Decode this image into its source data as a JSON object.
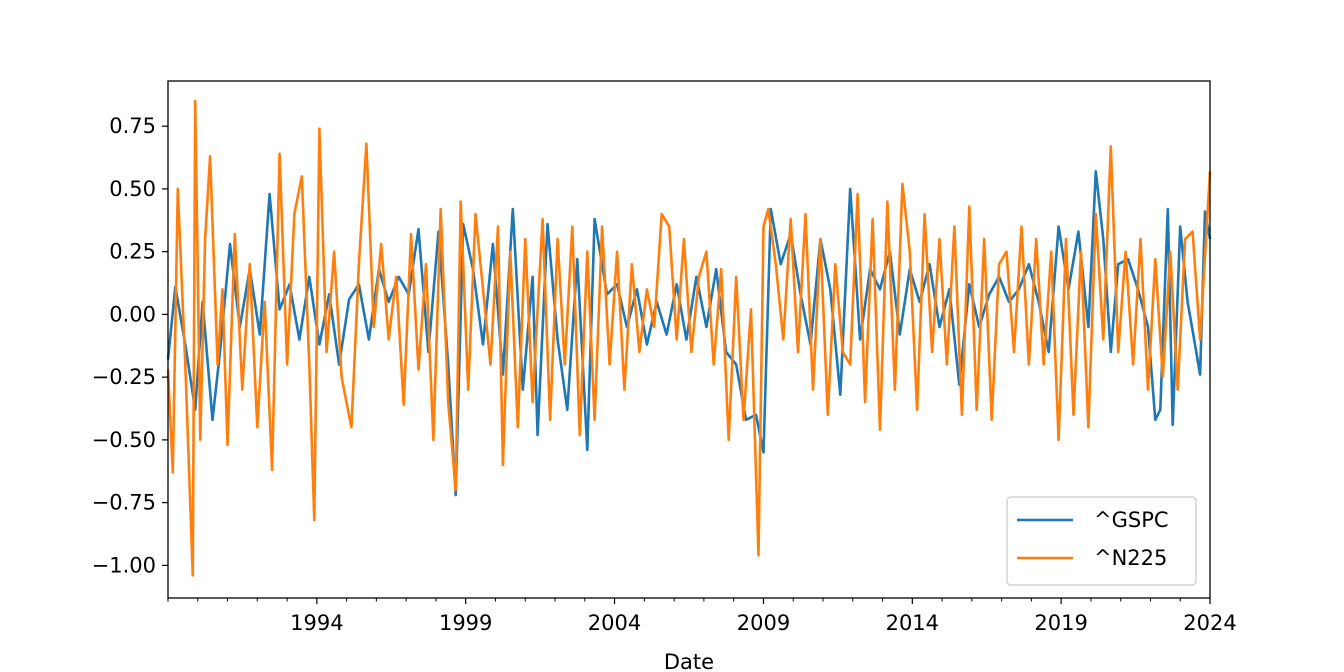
{
  "chart_data": {
    "type": "line",
    "title": "",
    "xlabel": "Date",
    "ylabel": "",
    "xlim": [
      "1989-01-01",
      "2024-01-01"
    ],
    "ylim": [
      -1.13,
      0.93
    ],
    "x_ticks": [
      {
        "label": "1994",
        "date": "1994-01-01"
      },
      {
        "label": "1999",
        "date": "1999-01-01"
      },
      {
        "label": "2004",
        "date": "2004-01-01"
      },
      {
        "label": "2009",
        "date": "2009-01-01"
      },
      {
        "label": "2014",
        "date": "2014-01-01"
      },
      {
        "label": "2019",
        "date": "2019-01-01"
      },
      {
        "label": "2024",
        "date": "2024-01-01"
      }
    ],
    "y_ticks": [
      {
        "label": "0.75",
        "value": 0.75
      },
      {
        "label": "0.50",
        "value": 0.5
      },
      {
        "label": "0.25",
        "value": 0.25
      },
      {
        "label": "0.00",
        "value": 0.0
      },
      {
        "label": "−0.25",
        "value": -0.25
      },
      {
        "label": "−0.50",
        "value": -0.5
      },
      {
        "label": "−0.75",
        "value": -0.75
      },
      {
        "label": "−1.00",
        "value": -1.0
      }
    ],
    "grid": false,
    "legend_position": "lower-right",
    "series": [
      {
        "name": "^GSPC",
        "color": "#1f77b4",
        "points": [
          [
            "1989-01-01",
            -0.18
          ],
          [
            "1989-04-01",
            0.11
          ],
          [
            "1989-08-01",
            -0.12
          ],
          [
            "1989-12-01",
            -0.38
          ],
          [
            "1990-03-01",
            0.05
          ],
          [
            "1990-07-01",
            -0.42
          ],
          [
            "1990-10-01",
            -0.15
          ],
          [
            "1991-02-01",
            0.28
          ],
          [
            "1991-06-01",
            -0.05
          ],
          [
            "1991-10-01",
            0.18
          ],
          [
            "1992-02-01",
            -0.08
          ],
          [
            "1992-06-01",
            0.48
          ],
          [
            "1992-10-01",
            0.02
          ],
          [
            "1993-02-01",
            0.12
          ],
          [
            "1993-06-01",
            -0.1
          ],
          [
            "1993-10-01",
            0.15
          ],
          [
            "1994-02-01",
            -0.12
          ],
          [
            "1994-06-01",
            0.08
          ],
          [
            "1994-10-01",
            -0.2
          ],
          [
            "1995-02-01",
            0.06
          ],
          [
            "1995-06-01",
            0.12
          ],
          [
            "1995-10-01",
            -0.1
          ],
          [
            "1996-02-01",
            0.18
          ],
          [
            "1996-06-01",
            0.05
          ],
          [
            "1996-10-01",
            0.15
          ],
          [
            "1997-02-01",
            0.08
          ],
          [
            "1997-06-01",
            0.34
          ],
          [
            "1997-10-01",
            -0.15
          ],
          [
            "1998-02-01",
            0.33
          ],
          [
            "1998-06-01",
            -0.2
          ],
          [
            "1998-09-01",
            -0.72
          ],
          [
            "1998-12-01",
            0.36
          ],
          [
            "1999-04-01",
            0.18
          ],
          [
            "1999-08-01",
            -0.12
          ],
          [
            "1999-12-01",
            0.28
          ],
          [
            "2000-04-01",
            -0.24
          ],
          [
            "2000-08-01",
            0.42
          ],
          [
            "2000-12-01",
            -0.3
          ],
          [
            "2001-04-01",
            0.15
          ],
          [
            "2001-06-01",
            -0.48
          ],
          [
            "2001-10-01",
            0.36
          ],
          [
            "2002-02-01",
            -0.1
          ],
          [
            "2002-06-01",
            -0.38
          ],
          [
            "2002-10-01",
            0.22
          ],
          [
            "2003-02-01",
            -0.54
          ],
          [
            "2003-05-01",
            0.38
          ],
          [
            "2003-10-01",
            0.08
          ],
          [
            "2004-02-01",
            0.12
          ],
          [
            "2004-06-01",
            -0.05
          ],
          [
            "2004-10-01",
            0.1
          ],
          [
            "2005-02-01",
            -0.12
          ],
          [
            "2005-06-01",
            0.05
          ],
          [
            "2005-10-01",
            -0.08
          ],
          [
            "2006-02-01",
            0.12
          ],
          [
            "2006-06-01",
            -0.1
          ],
          [
            "2006-10-01",
            0.15
          ],
          [
            "2007-02-01",
            -0.05
          ],
          [
            "2007-06-01",
            0.18
          ],
          [
            "2007-10-01",
            -0.15
          ],
          [
            "2008-02-01",
            -0.2
          ],
          [
            "2008-06-01",
            -0.42
          ],
          [
            "2008-10-01",
            -0.4
          ],
          [
            "2009-01-01",
            -0.55
          ],
          [
            "2009-04-01",
            0.42
          ],
          [
            "2009-08-01",
            0.2
          ],
          [
            "2009-12-01",
            0.32
          ],
          [
            "2010-04-01",
            0.08
          ],
          [
            "2010-08-01",
            -0.12
          ],
          [
            "2010-12-01",
            0.3
          ],
          [
            "2011-04-01",
            0.1
          ],
          [
            "2011-08-01",
            -0.32
          ],
          [
            "2011-12-01",
            0.5
          ],
          [
            "2012-04-01",
            -0.1
          ],
          [
            "2012-08-01",
            0.18
          ],
          [
            "2012-12-01",
            0.1
          ],
          [
            "2013-04-01",
            0.25
          ],
          [
            "2013-08-01",
            -0.08
          ],
          [
            "2013-12-01",
            0.18
          ],
          [
            "2014-04-01",
            0.05
          ],
          [
            "2014-08-01",
            0.2
          ],
          [
            "2014-12-01",
            -0.05
          ],
          [
            "2015-04-01",
            0.1
          ],
          [
            "2015-08-01",
            -0.28
          ],
          [
            "2015-12-01",
            0.12
          ],
          [
            "2016-04-01",
            -0.05
          ],
          [
            "2016-08-01",
            0.08
          ],
          [
            "2016-12-01",
            0.15
          ],
          [
            "2017-04-01",
            0.05
          ],
          [
            "2017-08-01",
            0.1
          ],
          [
            "2017-12-01",
            0.2
          ],
          [
            "2018-04-01",
            0.05
          ],
          [
            "2018-08-01",
            -0.15
          ],
          [
            "2018-12-01",
            0.35
          ],
          [
            "2019-04-01",
            0.1
          ],
          [
            "2019-08-01",
            0.33
          ],
          [
            "2019-12-01",
            -0.05
          ],
          [
            "2020-03-01",
            0.57
          ],
          [
            "2020-06-01",
            0.3
          ],
          [
            "2020-09-01",
            -0.15
          ],
          [
            "2020-12-01",
            0.2
          ],
          [
            "2021-04-01",
            0.22
          ],
          [
            "2021-08-01",
            0.1
          ],
          [
            "2021-12-01",
            -0.05
          ],
          [
            "2022-03-01",
            -0.42
          ],
          [
            "2022-05-01",
            -0.38
          ],
          [
            "2022-08-01",
            0.42
          ],
          [
            "2022-10-01",
            -0.44
          ],
          [
            "2023-01-01",
            0.35
          ],
          [
            "2023-04-01",
            0.05
          ],
          [
            "2023-07-01",
            -0.12
          ],
          [
            "2023-09-01",
            -0.24
          ],
          [
            "2023-11-01",
            0.41
          ],
          [
            "2024-01-01",
            0.3
          ]
        ]
      },
      {
        "name": "^N225",
        "color": "#ff7f0e",
        "points": [
          [
            "1989-01-01",
            -0.22
          ],
          [
            "1989-03-01",
            -0.63
          ],
          [
            "1989-05-01",
            0.5
          ],
          [
            "1989-08-01",
            -0.2
          ],
          [
            "1989-11-01",
            -1.04
          ],
          [
            "1989-12-01",
            0.85
          ],
          [
            "1990-02-01",
            -0.5
          ],
          [
            "1990-04-01",
            0.3
          ],
          [
            "1990-06-01",
            0.63
          ],
          [
            "1990-09-01",
            -0.2
          ],
          [
            "1990-11-01",
            0.1
          ],
          [
            "1991-01-01",
            -0.52
          ],
          [
            "1991-04-01",
            0.32
          ],
          [
            "1991-07-01",
            -0.3
          ],
          [
            "1991-10-01",
            0.2
          ],
          [
            "1992-01-01",
            -0.45
          ],
          [
            "1992-04-01",
            0.05
          ],
          [
            "1992-07-01",
            -0.62
          ],
          [
            "1992-10-01",
            0.64
          ],
          [
            "1993-01-01",
            -0.2
          ],
          [
            "1993-04-01",
            0.4
          ],
          [
            "1993-07-01",
            0.55
          ],
          [
            "1993-10-01",
            -0.2
          ],
          [
            "1993-12-01",
            -0.82
          ],
          [
            "1994-02-01",
            0.74
          ],
          [
            "1994-05-01",
            -0.15
          ],
          [
            "1994-08-01",
            0.25
          ],
          [
            "1994-11-01",
            -0.25
          ],
          [
            "1995-03-01",
            -0.45
          ],
          [
            "1995-06-01",
            0.2
          ],
          [
            "1995-09-01",
            0.68
          ],
          [
            "1995-12-01",
            -0.05
          ],
          [
            "1996-03-01",
            0.28
          ],
          [
            "1996-06-01",
            -0.1
          ],
          [
            "1996-09-01",
            0.15
          ],
          [
            "1996-12-01",
            -0.36
          ],
          [
            "1997-03-01",
            0.32
          ],
          [
            "1997-06-01",
            -0.22
          ],
          [
            "1997-09-01",
            0.2
          ],
          [
            "1997-12-01",
            -0.5
          ],
          [
            "1998-03-01",
            0.42
          ],
          [
            "1998-06-01",
            -0.35
          ],
          [
            "1998-09-01",
            -0.7
          ],
          [
            "1998-11-01",
            0.45
          ],
          [
            "1999-02-01",
            -0.3
          ],
          [
            "1999-05-01",
            0.4
          ],
          [
            "1999-08-01",
            0.1
          ],
          [
            "1999-11-01",
            -0.2
          ],
          [
            "2000-02-01",
            0.35
          ],
          [
            "2000-04-01",
            -0.6
          ],
          [
            "2000-07-01",
            0.25
          ],
          [
            "2000-10-01",
            -0.45
          ],
          [
            "2001-01-01",
            0.3
          ],
          [
            "2001-04-01",
            -0.35
          ],
          [
            "2001-08-01",
            0.38
          ],
          [
            "2001-11-01",
            -0.42
          ],
          [
            "2002-02-01",
            0.3
          ],
          [
            "2002-05-01",
            -0.2
          ],
          [
            "2002-08-01",
            0.35
          ],
          [
            "2002-11-01",
            -0.48
          ],
          [
            "2003-02-01",
            0.25
          ],
          [
            "2003-05-01",
            -0.42
          ],
          [
            "2003-08-01",
            0.35
          ],
          [
            "2003-11-01",
            -0.2
          ],
          [
            "2004-02-01",
            0.25
          ],
          [
            "2004-05-01",
            -0.3
          ],
          [
            "2004-08-01",
            0.2
          ],
          [
            "2004-11-01",
            -0.15
          ],
          [
            "2005-02-01",
            0.1
          ],
          [
            "2005-05-01",
            -0.05
          ],
          [
            "2005-08-01",
            0.4
          ],
          [
            "2005-11-01",
            0.35
          ],
          [
            "2006-02-01",
            -0.1
          ],
          [
            "2006-05-01",
            0.3
          ],
          [
            "2006-08-01",
            -0.15
          ],
          [
            "2006-11-01",
            0.15
          ],
          [
            "2007-02-01",
            0.25
          ],
          [
            "2007-05-01",
            -0.2
          ],
          [
            "2007-08-01",
            0.18
          ],
          [
            "2007-11-01",
            -0.5
          ],
          [
            "2008-02-01",
            0.15
          ],
          [
            "2008-05-01",
            -0.42
          ],
          [
            "2008-08-01",
            0.02
          ],
          [
            "2008-11-01",
            -0.96
          ],
          [
            "2009-01-01",
            0.35
          ],
          [
            "2009-03-01",
            0.42
          ],
          [
            "2009-06-01",
            0.2
          ],
          [
            "2009-09-01",
            -0.1
          ],
          [
            "2009-12-01",
            0.38
          ],
          [
            "2010-03-01",
            -0.15
          ],
          [
            "2010-06-01",
            0.4
          ],
          [
            "2010-09-01",
            -0.3
          ],
          [
            "2010-12-01",
            0.3
          ],
          [
            "2011-03-01",
            -0.4
          ],
          [
            "2011-06-01",
            0.2
          ],
          [
            "2011-09-01",
            -0.15
          ],
          [
            "2011-12-01",
            -0.2
          ],
          [
            "2012-03-01",
            0.48
          ],
          [
            "2012-06-01",
            -0.35
          ],
          [
            "2012-09-01",
            0.38
          ],
          [
            "2012-12-01",
            -0.46
          ],
          [
            "2013-03-01",
            0.45
          ],
          [
            "2013-06-01",
            -0.3
          ],
          [
            "2013-09-01",
            0.52
          ],
          [
            "2013-12-01",
            0.25
          ],
          [
            "2014-03-01",
            -0.38
          ],
          [
            "2014-06-01",
            0.4
          ],
          [
            "2014-09-01",
            -0.15
          ],
          [
            "2014-12-01",
            0.3
          ],
          [
            "2015-03-01",
            -0.2
          ],
          [
            "2015-06-01",
            0.35
          ],
          [
            "2015-09-01",
            -0.4
          ],
          [
            "2015-12-01",
            0.43
          ],
          [
            "2016-03-01",
            -0.38
          ],
          [
            "2016-06-01",
            0.3
          ],
          [
            "2016-09-01",
            -0.42
          ],
          [
            "2016-12-01",
            0.2
          ],
          [
            "2017-03-01",
            0.25
          ],
          [
            "2017-06-01",
            -0.15
          ],
          [
            "2017-09-01",
            0.35
          ],
          [
            "2017-12-01",
            -0.2
          ],
          [
            "2018-03-01",
            0.3
          ],
          [
            "2018-06-01",
            -0.2
          ],
          [
            "2018-09-01",
            0.25
          ],
          [
            "2018-12-01",
            -0.5
          ],
          [
            "2019-03-01",
            0.3
          ],
          [
            "2019-06-01",
            -0.4
          ],
          [
            "2019-09-01",
            0.25
          ],
          [
            "2019-12-01",
            -0.45
          ],
          [
            "2020-03-01",
            0.4
          ],
          [
            "2020-06-01",
            -0.1
          ],
          [
            "2020-09-01",
            0.67
          ],
          [
            "2020-12-01",
            -0.15
          ],
          [
            "2021-03-01",
            0.25
          ],
          [
            "2021-06-01",
            -0.2
          ],
          [
            "2021-09-01",
            0.3
          ],
          [
            "2021-12-01",
            -0.3
          ],
          [
            "2022-03-01",
            0.22
          ],
          [
            "2022-06-01",
            -0.25
          ],
          [
            "2022-09-01",
            0.25
          ],
          [
            "2022-12-01",
            -0.3
          ],
          [
            "2023-03-01",
            0.3
          ],
          [
            "2023-06-01",
            0.33
          ],
          [
            "2023-09-01",
            -0.1
          ],
          [
            "2023-12-01",
            0.4
          ],
          [
            "2024-01-01",
            0.57
          ]
        ]
      }
    ]
  }
}
